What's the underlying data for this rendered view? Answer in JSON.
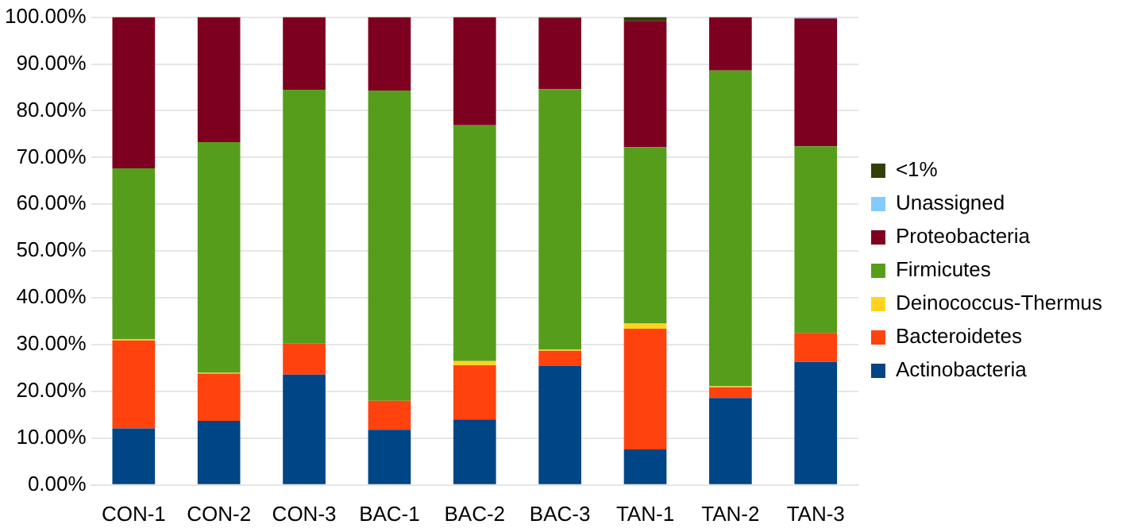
{
  "chart_data": {
    "type": "bar",
    "stacked": true,
    "categories": [
      "CON-1",
      "CON-2",
      "CON-3",
      "BAC-1",
      "BAC-2",
      "BAC-3",
      "TAN-1",
      "TAN-2",
      "TAN-3"
    ],
    "series": [
      {
        "name": "Actinobacteria",
        "color": "#004586",
        "values": [
          12.1,
          13.7,
          23.6,
          11.8,
          14.0,
          25.5,
          7.6,
          18.6,
          26.3
        ]
      },
      {
        "name": "Bacteroidetes",
        "color": "#ff420e",
        "values": [
          18.8,
          10.1,
          6.7,
          6.2,
          11.6,
          3.2,
          25.8,
          2.3,
          6.2
        ]
      },
      {
        "name": "Deinococcus-Thermus",
        "color": "#ffd320",
        "values": [
          0.3,
          0.2,
          0,
          0,
          0.9,
          0.3,
          1.1,
          0.2,
          0
        ]
      },
      {
        "name": "Firmicutes",
        "color": "#579d1c",
        "values": [
          36.5,
          49.3,
          54.2,
          66.3,
          50.4,
          55.6,
          37.7,
          67.5,
          39.9
        ]
      },
      {
        "name": "Proteobacteria",
        "color": "#7e0021",
        "values": [
          32.3,
          26.7,
          15.5,
          15.7,
          23.1,
          15.2,
          27.0,
          11.4,
          27.3
        ]
      },
      {
        "name": "Unassigned",
        "color": "#83caff",
        "values": [
          0,
          0,
          0,
          0,
          0,
          0,
          0,
          0,
          0.3
        ]
      },
      {
        "name": "<1%",
        "color": "#314004",
        "values": [
          0,
          0,
          0,
          0,
          0,
          0.2,
          0.8,
          0,
          0
        ]
      }
    ],
    "ylim": [
      0,
      100
    ],
    "yticks": [
      {
        "value": 0,
        "label": "0.00%"
      },
      {
        "value": 10,
        "label": "10.00%"
      },
      {
        "value": 20,
        "label": "20.00%"
      },
      {
        "value": 30,
        "label": "30.00%"
      },
      {
        "value": 40,
        "label": "40.00%"
      },
      {
        "value": 50,
        "label": "50.00%"
      },
      {
        "value": 60,
        "label": "60.00%"
      },
      {
        "value": 70,
        "label": "70.00%"
      },
      {
        "value": 80,
        "label": "80.00%"
      },
      {
        "value": 90,
        "label": "90.00%"
      },
      {
        "value": 100,
        "label": "100.00%"
      }
    ],
    "grid": "y",
    "legend": "right"
  }
}
